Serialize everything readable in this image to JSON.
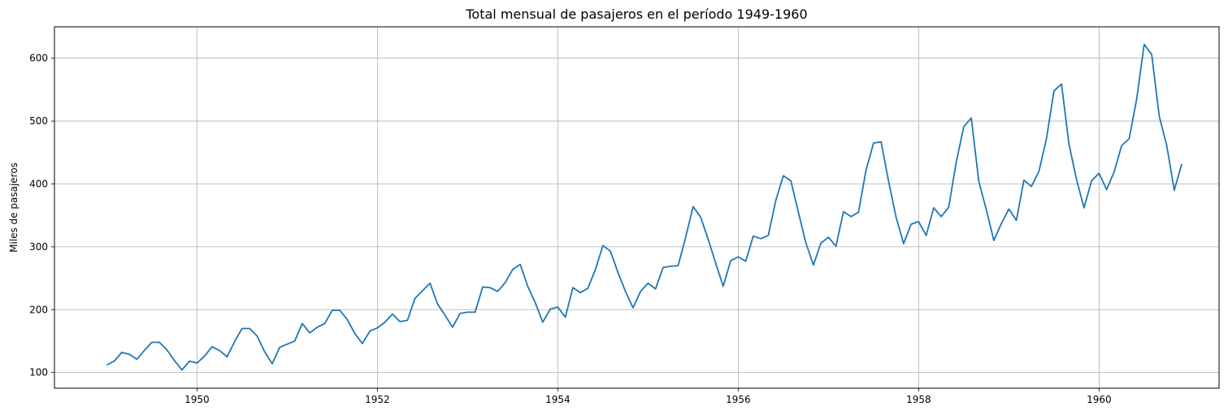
{
  "chart_data": {
    "type": "line",
    "title": "Total mensual de pasajeros en el período 1949-1960",
    "xlabel": "",
    "ylabel": "Miles de pasajeros",
    "xlim": [
      1948.42,
      1961.33
    ],
    "ylim": [
      75,
      650
    ],
    "grid": true,
    "x_ticks": [
      "1950",
      "1952",
      "1954",
      "1956",
      "1958",
      "1960"
    ],
    "y_ticks": [
      "100",
      "200",
      "300",
      "400",
      "500",
      "600"
    ],
    "series": [
      {
        "color": "#1f77b4",
        "x_start": "1949-01",
        "x_step": "month",
        "values": [
          112,
          118,
          132,
          129,
          121,
          135,
          148,
          148,
          136,
          119,
          104,
          118,
          115,
          126,
          141,
          135,
          125,
          149,
          170,
          170,
          158,
          133,
          114,
          140,
          145,
          150,
          178,
          163,
          172,
          178,
          199,
          199,
          184,
          162,
          146,
          166,
          171,
          180,
          193,
          181,
          183,
          218,
          230,
          242,
          209,
          191,
          172,
          194,
          196,
          196,
          236,
          235,
          229,
          243,
          264,
          272,
          237,
          211,
          180,
          201,
          204,
          188,
          235,
          227,
          234,
          264,
          302,
          293,
          259,
          229,
          203,
          229,
          242,
          233,
          267,
          269,
          270,
          315,
          364,
          347,
          312,
          274,
          237,
          278,
          284,
          277,
          317,
          313,
          318,
          374,
          413,
          405,
          355,
          306,
          271,
          306,
          315,
          301,
          356,
          348,
          355,
          422,
          465,
          467,
          404,
          347,
          305,
          336,
          340,
          318,
          362,
          348,
          363,
          435,
          491,
          505,
          404,
          359,
          310,
          337,
          360,
          342,
          406,
          396,
          420,
          472,
          548,
          559,
          463,
          407,
          362,
          405,
          417,
          391,
          419,
          461,
          472,
          535,
          622,
          606,
          508,
          461,
          390,
          432
        ]
      }
    ]
  }
}
